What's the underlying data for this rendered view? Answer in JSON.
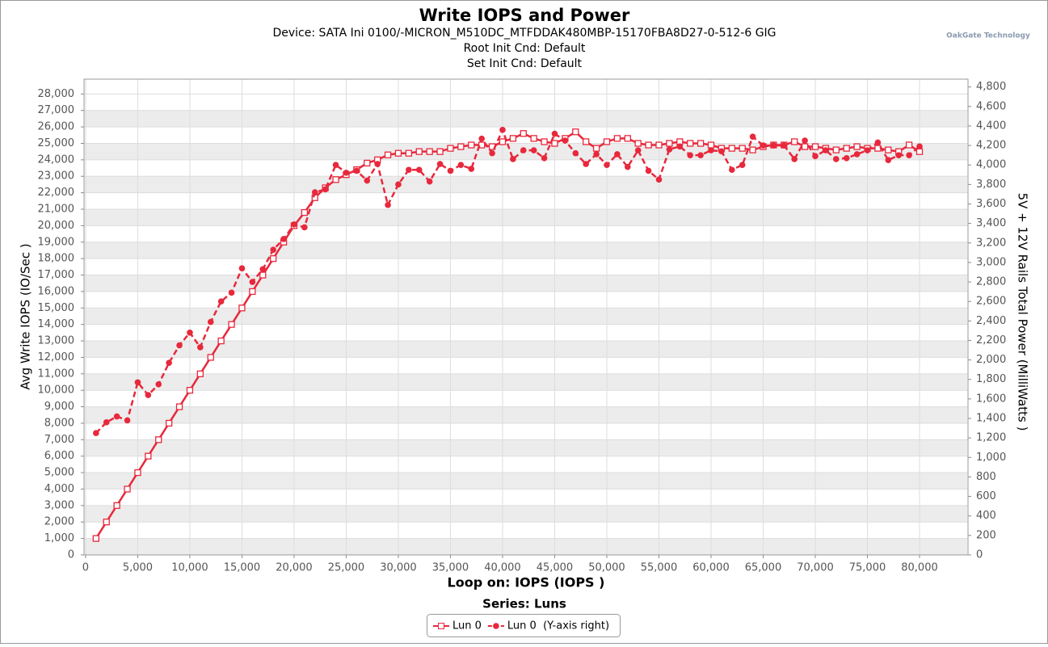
{
  "chart_data": {
    "type": "line",
    "title": "Write IOPS and Power",
    "subtitles": [
      "Device: SATA Ini 0100/-MICRON_M510DC_MTFDDAK480MBP-15170FBA8D27-0-512-6 GIG",
      "Root Init Cnd: Default",
      "Set Init Cnd: Default"
    ],
    "brand": "OakGate Technology",
    "x_label": "Loop on: IOPS (IOPS )",
    "y_label": "Avg Write IOPS (IO/Sec )",
    "y2_label": "5V + 12V Rails Total Power (MilliWatts )",
    "legend_title": "Series: Luns",
    "legend_position": "bottom",
    "grid": true,
    "xlim": [
      -150,
      84650
    ],
    "ylim": [
      0,
      28900
    ],
    "y2lim": [
      0,
      4880
    ],
    "xticks": [
      0,
      {
        "value": 5000,
        "label": "5,000"
      },
      {
        "value": 10000,
        "label": "10,000"
      },
      {
        "value": 15000,
        "label": "15,000"
      },
      {
        "value": 20000,
        "label": "20,000"
      },
      {
        "value": 25000,
        "label": "25,000"
      },
      {
        "value": 30000,
        "label": "30,000"
      },
      {
        "value": 35000,
        "label": "35,000"
      },
      {
        "value": 40000,
        "label": "40,000"
      },
      {
        "value": 45000,
        "label": "45,000"
      },
      {
        "value": 50000,
        "label": "50,000"
      },
      {
        "value": 55000,
        "label": "55,000"
      },
      {
        "value": 60000,
        "label": "60,000"
      },
      {
        "value": 65000,
        "label": "65,000"
      },
      {
        "value": 70000,
        "label": "70,000"
      },
      {
        "value": 75000,
        "label": "75,000"
      },
      {
        "value": 80000,
        "label": "80,000"
      }
    ],
    "yticks": [
      0,
      {
        "value": 1000,
        "label": "1,000"
      },
      {
        "value": 2000,
        "label": "2,000"
      },
      {
        "value": 3000,
        "label": "3,000"
      },
      {
        "value": 4000,
        "label": "4,000"
      },
      {
        "value": 5000,
        "label": "5,000"
      },
      {
        "value": 6000,
        "label": "6,000"
      },
      {
        "value": 7000,
        "label": "7,000"
      },
      {
        "value": 8000,
        "label": "8,000"
      },
      {
        "value": 9000,
        "label": "9,000"
      },
      {
        "value": 10000,
        "label": "10,000"
      },
      {
        "value": 11000,
        "label": "11,000"
      },
      {
        "value": 12000,
        "label": "12,000"
      },
      {
        "value": 13000,
        "label": "13,000"
      },
      {
        "value": 14000,
        "label": "14,000"
      },
      {
        "value": 15000,
        "label": "15,000"
      },
      {
        "value": 16000,
        "label": "16,000"
      },
      {
        "value": 17000,
        "label": "17,000"
      },
      {
        "value": 18000,
        "label": "18,000"
      },
      {
        "value": 19000,
        "label": "19,000"
      },
      {
        "value": 20000,
        "label": "20,000"
      },
      {
        "value": 21000,
        "label": "21,000"
      },
      {
        "value": 22000,
        "label": "22,000"
      },
      {
        "value": 23000,
        "label": "23,000"
      },
      {
        "value": 24000,
        "label": "24,000"
      },
      {
        "value": 25000,
        "label": "25,000"
      },
      {
        "value": 26000,
        "label": "26,000"
      },
      {
        "value": 27000,
        "label": "27,000"
      },
      {
        "value": 28000,
        "label": "28,000"
      }
    ],
    "y2ticks": [
      0,
      200,
      400,
      600,
      800,
      {
        "value": 1000,
        "label": "1,000"
      },
      {
        "value": 1200,
        "label": "1,200"
      },
      {
        "value": 1400,
        "label": "1,400"
      },
      {
        "value": 1600,
        "label": "1,600"
      },
      {
        "value": 1800,
        "label": "1,800"
      },
      {
        "value": 2000,
        "label": "2,000"
      },
      {
        "value": 2200,
        "label": "2,200"
      },
      {
        "value": 2400,
        "label": "2,400"
      },
      {
        "value": 2600,
        "label": "2,600"
      },
      {
        "value": 2800,
        "label": "2,800"
      },
      {
        "value": 3000,
        "label": "3,000"
      },
      {
        "value": 3200,
        "label": "3,200"
      },
      {
        "value": 3400,
        "label": "3,400"
      },
      {
        "value": 3600,
        "label": "3,600"
      },
      {
        "value": 3800,
        "label": "3,800"
      },
      {
        "value": 4000,
        "label": "4,000"
      },
      {
        "value": 4200,
        "label": "4,200"
      },
      {
        "value": 4400,
        "label": "4,400"
      },
      {
        "value": 4600,
        "label": "4,600"
      },
      {
        "value": 4800,
        "label": "4,800"
      }
    ],
    "x": [
      1000,
      2000,
      3000,
      4000,
      5000,
      6000,
      7000,
      8000,
      9000,
      10000,
      11000,
      12000,
      13000,
      14000,
      15000,
      16000,
      17000,
      18000,
      19000,
      20000,
      21000,
      22000,
      23000,
      24000,
      25000,
      26000,
      27000,
      28000,
      29000,
      30000,
      31000,
      32000,
      33000,
      34000,
      35000,
      36000,
      37000,
      38000,
      39000,
      40000,
      41000,
      42000,
      43000,
      44000,
      45000,
      46000,
      47000,
      48000,
      49000,
      50000,
      51000,
      52000,
      53000,
      54000,
      55000,
      56000,
      57000,
      58000,
      59000,
      60000,
      61000,
      62000,
      63000,
      64000,
      65000,
      66000,
      67000,
      68000,
      69000,
      70000,
      71000,
      72000,
      73000,
      74000,
      75000,
      76000,
      77000,
      78000,
      79000,
      80000
    ],
    "series": [
      {
        "name": "Lun 0",
        "color": "#e8283c",
        "axis": "y",
        "values": [
          1000,
          2000,
          3000,
          4000,
          5000,
          6000,
          7000,
          8000,
          9000,
          10000,
          11000,
          12000,
          13000,
          14000,
          15000,
          16000,
          17000,
          18000,
          19000,
          20000,
          20800,
          21700,
          22300,
          22800,
          23100,
          23400,
          23800,
          24000,
          24300,
          24400,
          24400,
          24500,
          24500,
          24500,
          24700,
          24800,
          24900,
          24900,
          24800,
          25100,
          25300,
          25600,
          25300,
          25100,
          25000,
          25300,
          25700,
          25100,
          24700,
          25100,
          25300,
          25300,
          25000,
          24900,
          24900,
          25000,
          25100,
          25000,
          25000,
          24900,
          24700,
          24700,
          24700,
          24600,
          24800,
          24900,
          24900,
          25100,
          24800,
          24800,
          24700,
          24600,
          24700,
          24800,
          24700,
          24700,
          24600,
          24500,
          24900,
          24500
        ]
      },
      {
        "name": "Lun 0  (Y-axis right)",
        "color": "#e8283c",
        "axis": "y2",
        "values": [
          1250,
          1360,
          1420,
          1380,
          1770,
          1640,
          1750,
          1970,
          2150,
          2280,
          2130,
          2390,
          2600,
          2690,
          2940,
          2800,
          2930,
          3130,
          3240,
          3390,
          3360,
          3720,
          3750,
          4000,
          3920,
          3940,
          3840,
          4010,
          3590,
          3800,
          3950,
          3950,
          3830,
          4010,
          3940,
          4000,
          3960,
          4270,
          4120,
          4360,
          4060,
          4150,
          4150,
          4070,
          4320,
          4250,
          4120,
          4010,
          4110,
          4000,
          4110,
          3980,
          4150,
          3940,
          3850,
          4160,
          4190,
          4100,
          4100,
          4150,
          4140,
          3950,
          4000,
          4290,
          4200,
          4200,
          4200,
          4060,
          4250,
          4090,
          4150,
          4060,
          4070,
          4110,
          4150,
          4230,
          4050,
          4100,
          4100,
          4190
        ]
      }
    ]
  }
}
